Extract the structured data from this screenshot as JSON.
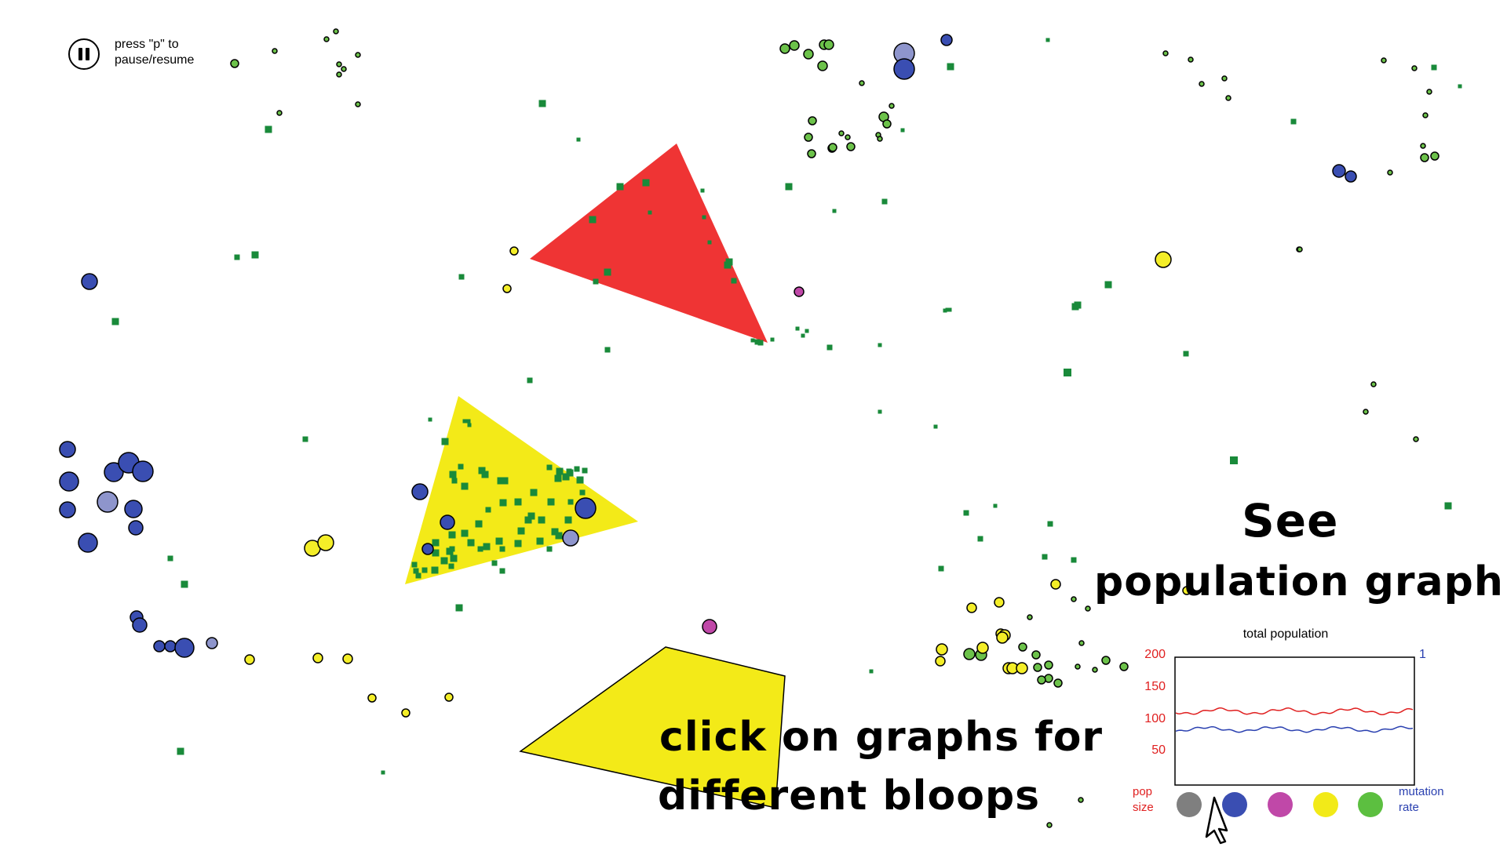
{
  "pause": {
    "icon": "pause-icon",
    "hint": "press \"p\" to\npause/resume"
  },
  "annotations": {
    "see": "See",
    "population_graph": "population graph",
    "click_line1": "click on graphs for",
    "click_line2": "different bloops"
  },
  "graph": {
    "title": "total population",
    "left_ticks": [
      "200",
      "150",
      "100",
      "50"
    ],
    "right_tick": "1",
    "left_axis_name": "pop\nsize",
    "right_axis_name": "mutation\nrate"
  },
  "bloop_selectors": [
    {
      "name": "gray-bloops",
      "color": "#7f7f7f"
    },
    {
      "name": "blue-bloops",
      "color": "#3a4eb2"
    },
    {
      "name": "magenta-bloops",
      "color": "#c048a8"
    },
    {
      "name": "yellow-bloops",
      "color": "#f2ea18"
    },
    {
      "name": "green-bloops",
      "color": "#5cbf40"
    }
  ],
  "colors": {
    "food": "#198a3a",
    "red_triangle": "#ef3434",
    "yellow_shape": "#f3ea18",
    "pop_line": "#e02020",
    "mutation_line": "#2a40b0",
    "blue_bloop": "#3a4eb2",
    "light_blue_bloop": "#8e95cc",
    "yellow_bloop": "#f4ee28",
    "green_bloop": "#6cc24a",
    "magenta_bloop": "#c048a8"
  }
}
